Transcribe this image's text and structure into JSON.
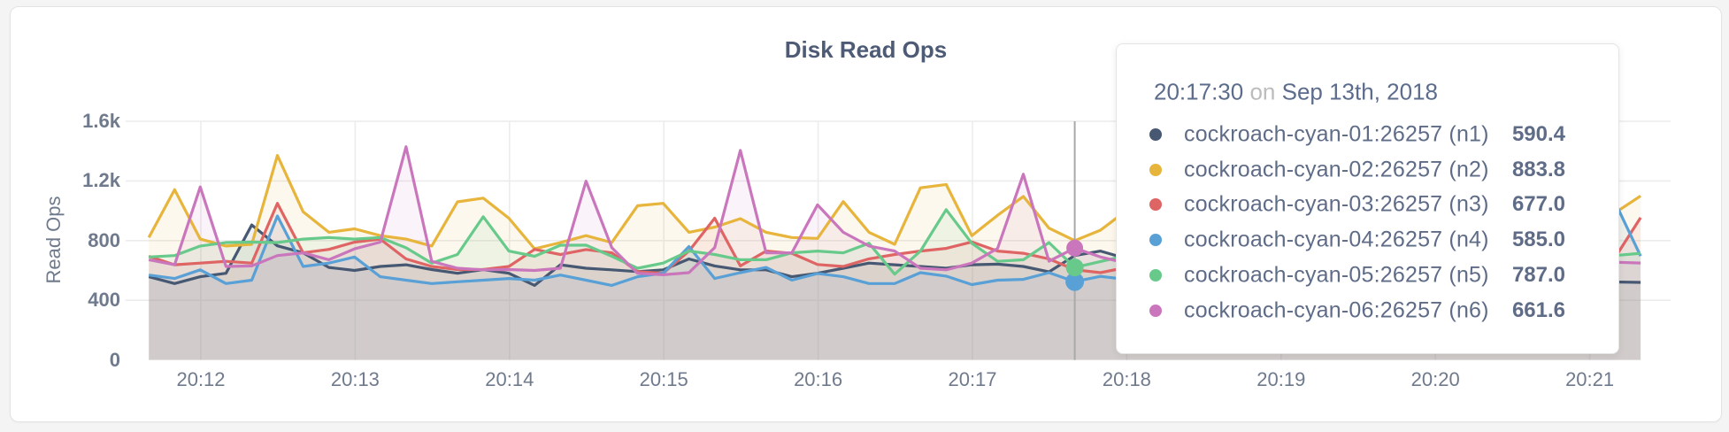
{
  "card": {
    "title": "Disk Read Ops"
  },
  "colors": {
    "page_background": "#f4f4f4",
    "card_background": "#ffffff",
    "grid_line": "#ececec",
    "axis_text": "#6f7a8d",
    "title_text": "#4d5b76",
    "tooltip_text": "#5f6c87",
    "tooltip_on_text": "#bcbcbc",
    "crosshair": "#a9a9a9"
  },
  "chart_data": {
    "type": "line",
    "title": "Disk Read Ops",
    "xlabel": "",
    "ylabel": "Read Ops",
    "ylim": [
      0,
      1600
    ],
    "grid": true,
    "legend_position": "tooltip",
    "y_ticks": [
      {
        "value": 0,
        "label": "0"
      },
      {
        "value": 400,
        "label": "400"
      },
      {
        "value": 800,
        "label": "800"
      },
      {
        "value": 1200,
        "label": "1.2k"
      },
      {
        "value": 1600,
        "label": "1.6k"
      }
    ],
    "x_ticks": [
      "20:12",
      "20:13",
      "20:14",
      "20:15",
      "20:16",
      "20:17",
      "20:18",
      "20:19",
      "20:20",
      "20:21"
    ],
    "x_start_time": "20:11:40",
    "x_step_seconds": 10,
    "fill_opacity": 0.09,
    "series": [
      {
        "name": "cockroach-cyan-01:26257 (n1)",
        "color": "#475872",
        "values": [
          558,
          512,
          558,
          581,
          905,
          765,
          718,
          620,
          600,
          627,
          638,
          606,
          581,
          606,
          581,
          500,
          638,
          615,
          604,
          592,
          604,
          677,
          630,
          604,
          604,
          558,
          581,
          615,
          649,
          638,
          627,
          615,
          638,
          642,
          627,
          590.4,
          700,
          730,
          680,
          640,
          600,
          575,
          610,
          650,
          620,
          590,
          560,
          600,
          640,
          615,
          580,
          555,
          595,
          630,
          600,
          570,
          540,
          523,
          520
        ]
      },
      {
        "name": "cockroach-cyan-02:26257 (n2)",
        "color": "#e7b43c",
        "values": [
          821,
          1142,
          810,
          764,
          775,
          1371,
          993,
          856,
          879,
          833,
          810,
          764,
          1060,
          1085,
          950,
          745,
          787,
          833,
          787,
          1034,
          1050,
          856,
          890,
          947,
          856,
          821,
          815,
          1062,
          856,
          775,
          1154,
          1176,
          833,
          970,
          1096,
          883.8,
          800,
          870,
          1000,
          1120,
          980,
          860,
          820,
          900,
          1050,
          1150,
          1000,
          880,
          840,
          920,
          1080,
          990,
          870,
          830,
          910,
          1020,
          950,
          985,
          1100
        ]
      },
      {
        "name": "cockroach-cyan-03:26257 (n3)",
        "color": "#df6464",
        "values": [
          695,
          638,
          649,
          661,
          649,
          1050,
          718,
          741,
          790,
          810,
          677,
          627,
          606,
          606,
          627,
          741,
          707,
          740,
          718,
          592,
          581,
          730,
          950,
          630,
          730,
          715,
          640,
          627,
          678,
          707,
          730,
          748,
          791,
          730,
          715,
          677.0,
          605,
          585,
          620,
          660,
          700,
          650,
          600,
          640,
          690,
          720,
          670,
          620,
          650,
          700,
          740,
          680,
          630,
          660,
          710,
          690,
          655,
          685,
          954
        ]
      },
      {
        "name": "cockroach-cyan-04:26257 (n4)",
        "color": "#58a0d6",
        "values": [
          569,
          546,
          604,
          512,
          535,
          965,
          627,
          649,
          690,
          558,
          535,
          512,
          524,
          535,
          546,
          535,
          569,
          535,
          500,
          558,
          581,
          760,
          546,
          585,
          620,
          535,
          580,
          558,
          512,
          512,
          585,
          562,
          505,
          535,
          540,
          585.0,
          525,
          560,
          540,
          580,
          610,
          570,
          545,
          575,
          600,
          560,
          530,
          565,
          590,
          620,
          580,
          550,
          570,
          600,
          640,
          580,
          560,
          1060,
          697
        ]
      },
      {
        "name": "cockroach-cyan-05:26257 (n5)",
        "color": "#67ca8b",
        "values": [
          690,
          700,
          764,
          787,
          790,
          787,
          810,
          821,
          810,
          821,
          752,
          649,
          707,
          960,
          730,
          695,
          769,
          770,
          695,
          615,
          649,
          730,
          707,
          672,
          672,
          718,
          730,
          718,
          782,
          575,
          730,
          1008,
          782,
          661,
          672,
          787.0,
          620,
          660,
          700,
          740,
          690,
          650,
          680,
          720,
          760,
          710,
          670,
          700,
          730,
          690,
          660,
          690,
          720,
          700,
          680,
          700,
          705,
          700,
          715
        ]
      },
      {
        "name": "cockroach-cyan-06:26257 (n6)",
        "color": "#ca76bc",
        "values": [
          672,
          638,
          1160,
          627,
          630,
          700,
          718,
          672,
          745,
          790,
          1429,
          661,
          615,
          604,
          606,
          600,
          615,
          1199,
          753,
          581,
          571,
          585,
          753,
          1405,
          718,
          718,
          1040,
          856,
          764,
          730,
          615,
          604,
          649,
          748,
          1245,
          661.6,
          750,
          690,
          650,
          630,
          660,
          700,
          1150,
          680,
          620,
          640,
          670,
          1250,
          700,
          640,
          620,
          650,
          680,
          1100,
          660,
          630,
          655,
          655,
          650
        ]
      }
    ]
  },
  "crosshair": {
    "time": "20:17:40",
    "point_index": 36,
    "dot_series": [
      3,
      4,
      5
    ]
  },
  "tooltip": {
    "time": "20:17:30",
    "connector": "on",
    "date": "Sep 13th, 2018",
    "rows": [
      {
        "label": "cockroach-cyan-01:26257 (n1)",
        "value": "590.4",
        "color": "#475872"
      },
      {
        "label": "cockroach-cyan-02:26257 (n2)",
        "value": "883.8",
        "color": "#e7b43c"
      },
      {
        "label": "cockroach-cyan-03:26257 (n3)",
        "value": "677.0",
        "color": "#df6464"
      },
      {
        "label": "cockroach-cyan-04:26257 (n4)",
        "value": "585.0",
        "color": "#58a0d6"
      },
      {
        "label": "cockroach-cyan-05:26257 (n5)",
        "value": "787.0",
        "color": "#67ca8b"
      },
      {
        "label": "cockroach-cyan-06:26257 (n6)",
        "value": "661.6",
        "color": "#ca76bc"
      }
    ]
  }
}
